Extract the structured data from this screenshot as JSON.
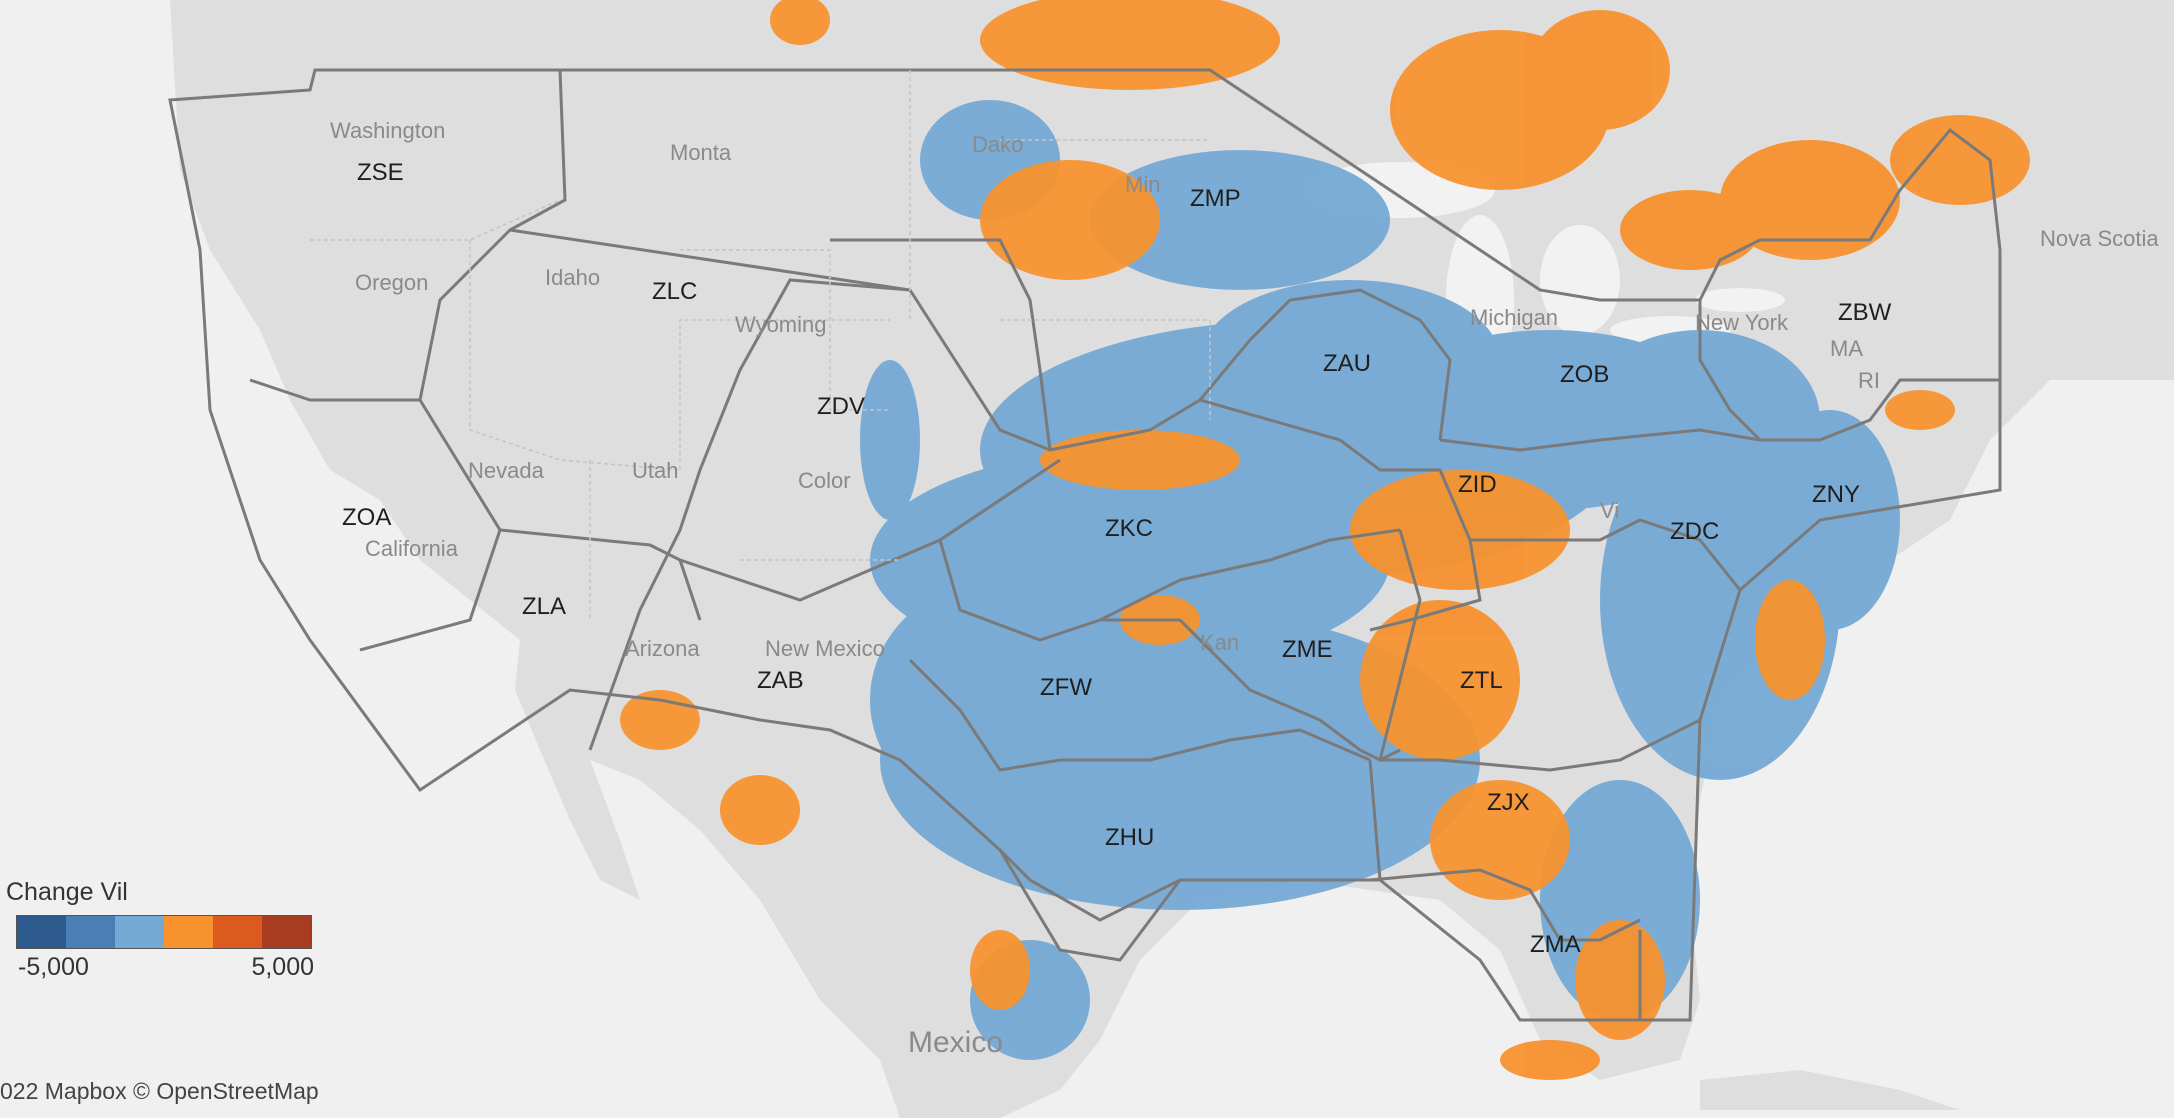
{
  "map": {
    "places": {
      "washington": "Washington",
      "oregon": "Oregon",
      "idaho": "Idaho",
      "montana": "Monta",
      "wyoming": "Wyoming",
      "nevada": "Nevada",
      "utah": "Utah",
      "colorado": "Color",
      "california": "California",
      "arizona": "Arizona",
      "new_mexico": "New Mexico",
      "dakota": "Dako",
      "minnesota": "Min",
      "michigan": "Michigan",
      "new_york": "New York",
      "ma": "MA",
      "ri": "RI",
      "kansas": "Kan",
      "nova_scotia": "Nova Scotia",
      "mexico": "Mexico",
      "virginia": "Vi"
    },
    "artcc": {
      "zse": "ZSE",
      "zlc": "ZLC",
      "zmp": "ZMP",
      "zoa": "ZOA",
      "zdv": "ZDV",
      "zau": "ZAU",
      "zob": "ZOB",
      "zbw": "ZBW",
      "zla": "ZLA",
      "zkc": "ZKC",
      "zid": "ZID",
      "zny": "ZNY",
      "zdc": "ZDC",
      "zab": "ZAB",
      "zfw": "ZFW",
      "zme": "ZME",
      "ztl": "ZTL",
      "zhu": "ZHU",
      "zjx": "ZJX",
      "zma": "ZMA"
    },
    "colors": {
      "land": "#dcdcdc",
      "water": "#f2f2f2",
      "negative": "#74a9d4",
      "positive": "#f7922f",
      "boundary": "#7a7a7a"
    }
  },
  "legend": {
    "title": "Change Vil",
    "min_label": "-5,000",
    "max_label": "5,000",
    "colors": [
      "#2c5a8c",
      "#4b7fb4",
      "#74a9d4",
      "#f7922f",
      "#dc5a1e",
      "#a83c20"
    ]
  },
  "attribution": "022 Mapbox © OpenStreetMap"
}
